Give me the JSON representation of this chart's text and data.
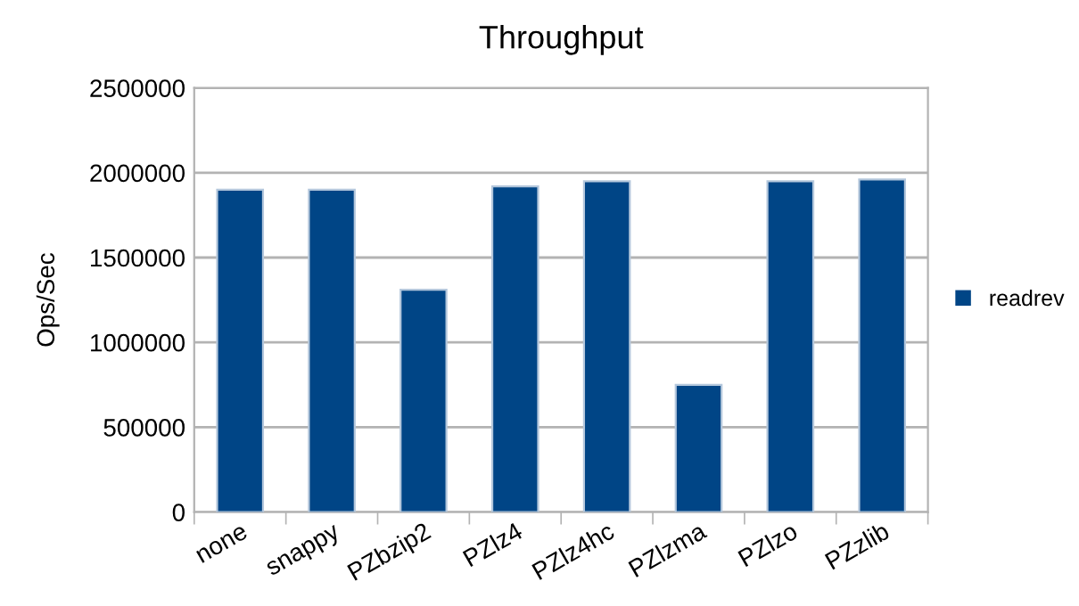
{
  "chart_data": {
    "type": "bar",
    "title": "Throughput",
    "ylabel": "Ops/Sec",
    "categories": [
      "none",
      "snappy",
      "PZbzip2",
      "PZlz4",
      "PZlz4hc",
      "PZlzma",
      "PZlzo",
      "PZzlib"
    ],
    "series": [
      {
        "name": "readrev",
        "color": "#004586",
        "values": [
          1900000,
          1900000,
          1310000,
          1920000,
          1950000,
          750000,
          1950000,
          1960000
        ]
      }
    ],
    "ylim": [
      0,
      2500000
    ],
    "yticks": [
      0,
      500000,
      1000000,
      1500000,
      2000000,
      2500000
    ],
    "grid": "y",
    "legend": "right"
  }
}
